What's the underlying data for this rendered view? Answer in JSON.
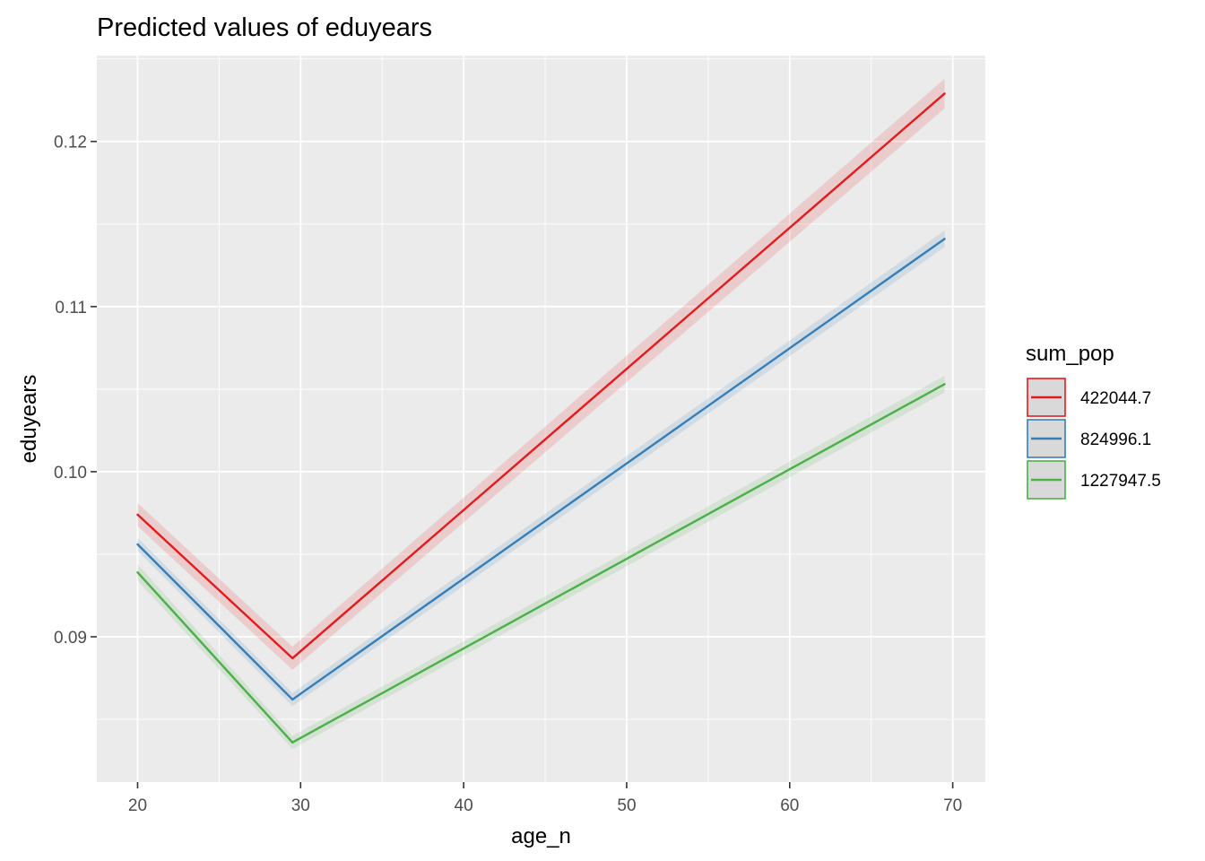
{
  "chart_data": {
    "type": "line",
    "title": "Predicted values of eduyears",
    "xlabel": "age_n",
    "ylabel": "eduyears",
    "xlim": [
      17.5,
      72
    ],
    "ylim": [
      0.0812,
      0.1252
    ],
    "x_ticks": [
      20,
      30,
      40,
      50,
      60,
      70
    ],
    "x_tick_labels": [
      "20",
      "30",
      "40",
      "50",
      "60",
      "70"
    ],
    "y_ticks": [
      0.09,
      0.1,
      0.11,
      0.12
    ],
    "y_tick_labels": [
      "0.09",
      "0.10",
      "0.11",
      "0.12"
    ],
    "grid": true,
    "legend_position": "right",
    "legend_title": "sum_pop",
    "x": [
      20,
      29.5,
      69.5
    ],
    "series": [
      {
        "name": "422044.7",
        "color": "#e41a1c",
        "values": [
          0.0974,
          0.0887,
          0.1229
        ],
        "lower": [
          0.0967,
          0.088,
          0.122
        ],
        "upper": [
          0.0981,
          0.0894,
          0.1238
        ]
      },
      {
        "name": "824996.1",
        "color": "#377eb8",
        "values": [
          0.0956,
          0.0862,
          0.1141
        ],
        "lower": [
          0.0952,
          0.0858,
          0.1136
        ],
        "upper": [
          0.096,
          0.0866,
          0.1146
        ]
      },
      {
        "name": "1227947.5",
        "color": "#4daf4a",
        "values": [
          0.0939,
          0.0836,
          0.1053
        ],
        "lower": [
          0.0934,
          0.0832,
          0.1048
        ],
        "upper": [
          0.0944,
          0.084,
          0.1058
        ]
      }
    ]
  }
}
